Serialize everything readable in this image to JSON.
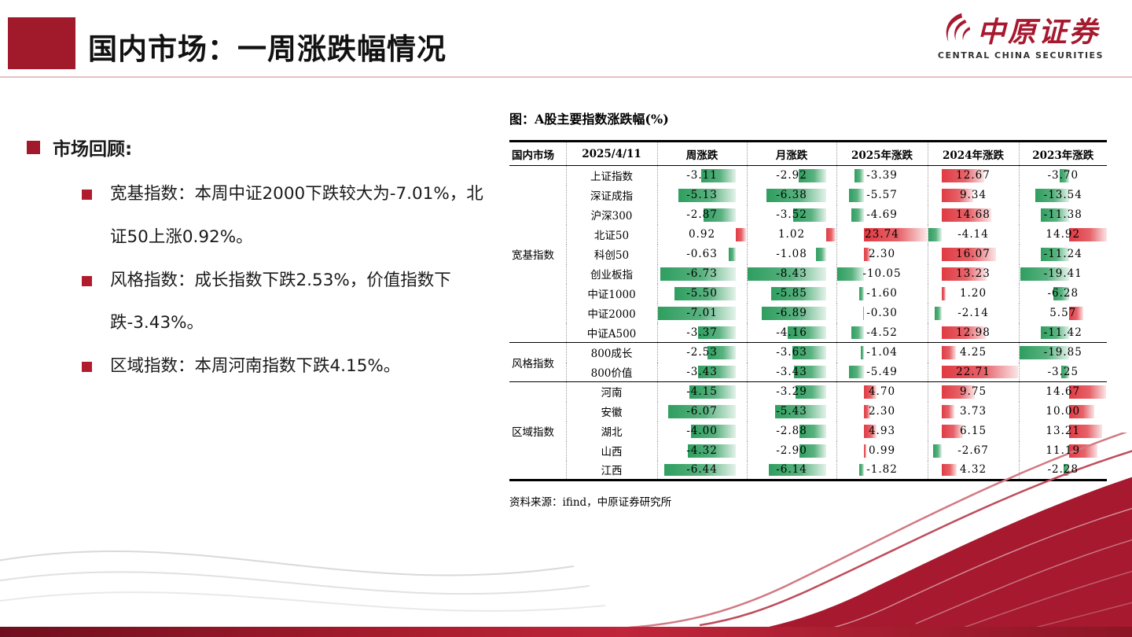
{
  "header": {
    "title": "国内市场：一周涨跌幅情况",
    "logo_cn": "中原证券",
    "logo_en": "CENTRAL CHINA SECURITIES"
  },
  "notes": {
    "heading": "市场回顾:",
    "bullets": [
      "宽基指数：本周中证2000下跌较大为-7.01%，北证50上涨0.92%。",
      "风格指数：成长指数下跌2.53%，价值指数下跌-3.43%。",
      "区域指数：本周河南指数下跌4.15%。"
    ]
  },
  "figure": {
    "title": "图：A股主要指数涨跌幅(%)",
    "source": "资料来源：ifind，中原证券研究所"
  },
  "chart_data": {
    "type": "table",
    "title": "图：A股主要指数涨跌幅(%)",
    "date_label": "2025/4/11",
    "columns": [
      "国内市场",
      "2025/4/11",
      "周涨跌",
      "月涨跌",
      "2025年涨跌",
      "2024年涨跌",
      "2023年涨跌"
    ],
    "value_columns": [
      "周涨跌",
      "月涨跌",
      "2025年涨跌",
      "2024年涨跌",
      "2023年涨跌"
    ],
    "positive_color": "#e03b43",
    "negative_color": "#2f9e5f",
    "groups": [
      {
        "name": "宽基指数",
        "rows": [
          {
            "index": "上证指数",
            "values": [
              -3.11,
              -2.92,
              -3.39,
              12.67,
              -3.7
            ]
          },
          {
            "index": "深证成指",
            "values": [
              -5.13,
              -6.38,
              -5.57,
              9.34,
              -13.54
            ]
          },
          {
            "index": "沪深300",
            "values": [
              -2.87,
              -3.52,
              -4.69,
              14.68,
              -11.38
            ]
          },
          {
            "index": "北证50",
            "values": [
              0.92,
              1.02,
              23.74,
              -4.14,
              14.92
            ]
          },
          {
            "index": "科创50",
            "values": [
              -0.63,
              -1.08,
              2.3,
              16.07,
              -11.24
            ]
          },
          {
            "index": "创业板指",
            "values": [
              -6.73,
              -8.43,
              -10.05,
              13.23,
              -19.41
            ]
          },
          {
            "index": "中证1000",
            "values": [
              -5.5,
              -5.85,
              -1.6,
              1.2,
              -6.28
            ]
          },
          {
            "index": "中证2000",
            "values": [
              -7.01,
              -6.89,
              -0.3,
              -2.14,
              5.57
            ]
          },
          {
            "index": "中证A500",
            "values": [
              -3.37,
              -4.16,
              -4.52,
              12.98,
              -11.42
            ]
          }
        ]
      },
      {
        "name": "风格指数",
        "rows": [
          {
            "index": "800成长",
            "values": [
              -2.53,
              -3.63,
              -1.04,
              4.25,
              -19.85
            ]
          },
          {
            "index": "800价值",
            "values": [
              -3.43,
              -3.43,
              -5.49,
              22.71,
              -3.25
            ]
          }
        ]
      },
      {
        "name": "区域指数",
        "rows": [
          {
            "index": "河南",
            "values": [
              -4.15,
              -3.29,
              4.7,
              9.75,
              14.67
            ]
          },
          {
            "index": "安徽",
            "values": [
              -6.07,
              -5.43,
              2.3,
              3.73,
              10.0
            ]
          },
          {
            "index": "湖北",
            "values": [
              -4.0,
              -2.88,
              4.93,
              6.15,
              13.21
            ]
          },
          {
            "index": "山西",
            "values": [
              -4.32,
              -2.9,
              0.99,
              -2.67,
              11.19
            ]
          },
          {
            "index": "江西",
            "values": [
              -6.44,
              -6.14,
              -1.82,
              4.32,
              -2.28
            ]
          }
        ]
      }
    ]
  }
}
